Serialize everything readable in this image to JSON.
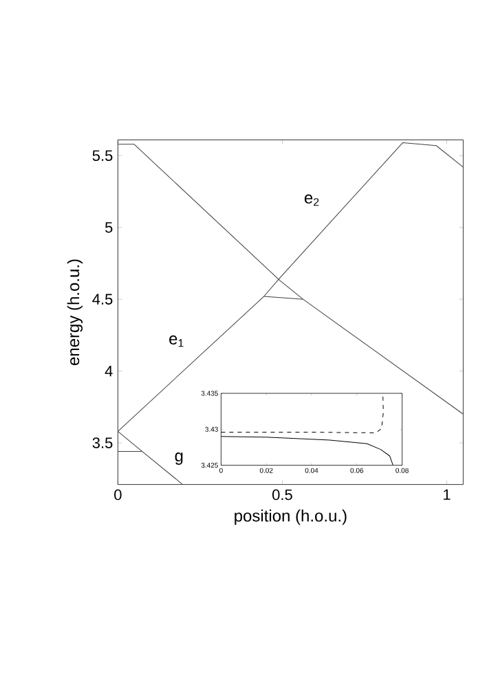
{
  "chart_data": [
    {
      "type": "line",
      "xlabel": "position (h.o.u.)",
      "ylabel": "energy (h.o.u.)",
      "xlim": [
        0,
        1.05
      ],
      "ylim": [
        3.21,
        5.61
      ],
      "xticks": [
        0,
        0.5,
        1
      ],
      "yticks": [
        3.5,
        4,
        4.5,
        5,
        5.5
      ],
      "grid": false,
      "marker": "none",
      "line_style": "solid",
      "series": [
        {
          "color": "#404040",
          "x": [
            0,
            0.444,
            0.493,
            0.866,
            0.968,
            1.05
          ],
          "values": [
            3.58,
            4.52,
            4.65,
            5.59,
            5.57,
            5.42
          ]
        },
        {
          "color": "#404040",
          "x": [
            0,
            0.049,
            0.493,
            0.563,
            1.05
          ],
          "values": [
            5.58,
            5.58,
            4.63,
            4.5,
            3.7
          ]
        },
        {
          "color": "#404040",
          "x": [
            0,
            0.074,
            0.197
          ],
          "values": [
            3.58,
            3.44,
            3.21
          ]
        },
        {
          "color": "#404040",
          "x": [
            0,
            0.074
          ],
          "values": [
            3.44,
            3.44
          ]
        },
        {
          "color": "#404040",
          "x": [
            0.444,
            0.563
          ],
          "values": [
            4.52,
            4.5
          ]
        }
      ],
      "annotations": [
        "e$_{1}$",
        "e$_{2}$",
        "g"
      ]
    },
    {
      "type": "line",
      "xlim": [
        0,
        0.08
      ],
      "ylim": [
        3.425,
        3.435
      ],
      "xticks": [
        0,
        0.02,
        0.04,
        0.06,
        0.08
      ],
      "yticks": [
        3.425,
        3.43,
        3.435
      ],
      "grid": false,
      "marker": "none",
      "series": [
        {
          "color": "#000000",
          "line_style": "solid",
          "x": [
            0,
            0.02,
            0.048,
            0.0645,
            0.0705,
            0.0745,
            0.076
          ],
          "values": [
            3.429,
            3.4289,
            3.4285,
            3.428,
            3.4272,
            3.4263,
            3.425
          ]
        },
        {
          "color": "#000000",
          "line_style": "dashed",
          "x": [
            0,
            0.04,
            0.0684,
            0.0709,
            0.0717,
            0.0715
          ],
          "values": [
            3.4296,
            3.4296,
            3.4295,
            3.4301,
            3.4323,
            3.435
          ]
        }
      ]
    }
  ]
}
